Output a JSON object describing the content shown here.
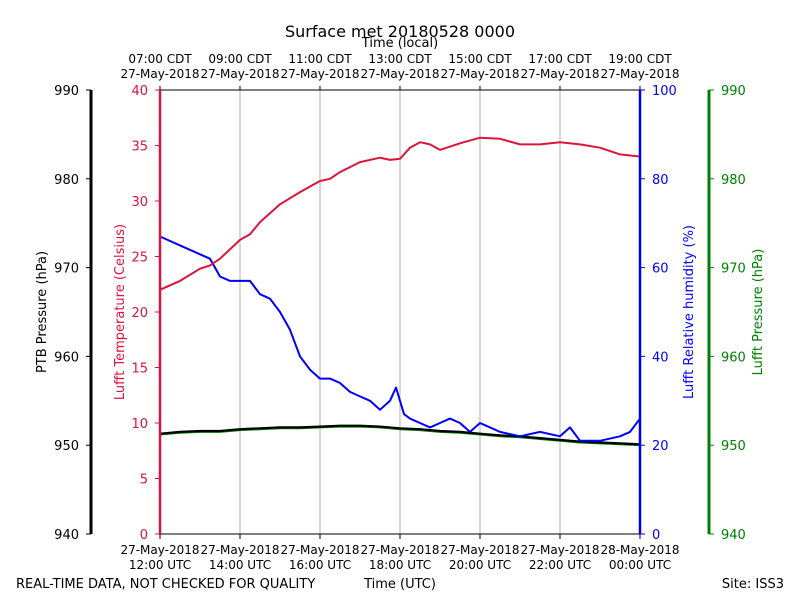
{
  "chart_data": {
    "type": "line",
    "title": "Surface met 20180528 0000",
    "top_axis_label": "Time (local)",
    "top_ticks": [
      {
        "time": "07:00 CDT",
        "date": "27-May-2018"
      },
      {
        "time": "09:00 CDT",
        "date": "27-May-2018"
      },
      {
        "time": "11:00 CDT",
        "date": "27-May-2018"
      },
      {
        "time": "13:00 CDT",
        "date": "27-May-2018"
      },
      {
        "time": "15:00 CDT",
        "date": "27-May-2018"
      },
      {
        "time": "17:00 CDT",
        "date": "27-May-2018"
      },
      {
        "time": "19:00 CDT",
        "date": "27-May-2018"
      }
    ],
    "bottom_ticks": [
      {
        "date": "27-May-2018",
        "time": "12:00 UTC"
      },
      {
        "date": "27-May-2018",
        "time": "14:00 UTC"
      },
      {
        "date": "27-May-2018",
        "time": "16:00 UTC"
      },
      {
        "date": "27-May-2018",
        "time": "18:00 UTC"
      },
      {
        "date": "27-May-2018",
        "time": "20:00 UTC"
      },
      {
        "date": "27-May-2018",
        "time": "22:00 UTC"
      },
      {
        "date": "28-May-2018",
        "time": "00:00 UTC"
      }
    ],
    "xlabel": "Time (UTC)",
    "xlim_hours_utc": [
      12,
      24
    ],
    "grid": true,
    "axes": {
      "ptb_pressure": {
        "label": "PTB Pressure (hPa)",
        "lim": [
          940,
          990
        ],
        "ticks": [
          940,
          950,
          960,
          970,
          980,
          990
        ],
        "color": "#000000"
      },
      "temperature": {
        "label": "Lufft Temperature (Celsius)",
        "lim": [
          0,
          40
        ],
        "ticks": [
          0,
          5,
          10,
          15,
          20,
          25,
          30,
          35,
          40
        ],
        "color": "#dc143c"
      },
      "humidity": {
        "label": "Lufft Relative humidity (%)",
        "lim": [
          0,
          100
        ],
        "ticks": [
          0,
          20,
          40,
          60,
          80,
          100
        ],
        "color": "#0000ff"
      },
      "lufft_pressure": {
        "label": "Lufft Pressure (hPa)",
        "lim": [
          940,
          990
        ],
        "ticks": [
          940,
          950,
          960,
          970,
          980,
          990
        ],
        "color": "#008000"
      }
    },
    "series": [
      {
        "name": "Lufft Temperature",
        "axis": "temperature",
        "color": "#dc143c",
        "x": [
          12.0,
          12.5,
          13.0,
          13.25,
          13.5,
          14.0,
          14.25,
          14.5,
          15.0,
          15.5,
          16.0,
          16.25,
          16.5,
          17.0,
          17.5,
          17.75,
          18.0,
          18.25,
          18.5,
          18.75,
          19.0,
          19.5,
          20.0,
          20.5,
          21.0,
          21.5,
          22.0,
          22.5,
          23.0,
          23.5,
          24.0
        ],
        "values": [
          22.0,
          22.8,
          23.9,
          24.2,
          24.8,
          26.5,
          27.0,
          28.1,
          29.7,
          30.8,
          31.8,
          32.0,
          32.6,
          33.5,
          33.9,
          33.7,
          33.8,
          34.8,
          35.3,
          35.1,
          34.6,
          35.2,
          35.7,
          35.6,
          35.1,
          35.1,
          35.3,
          35.1,
          34.8,
          34.2,
          34.0
        ]
      },
      {
        "name": "Lufft Relative humidity",
        "axis": "humidity",
        "color": "#0000ff",
        "x": [
          12.0,
          12.5,
          13.0,
          13.25,
          13.5,
          13.75,
          14.0,
          14.25,
          14.5,
          14.75,
          15.0,
          15.25,
          15.5,
          15.75,
          16.0,
          16.25,
          16.5,
          16.75,
          17.0,
          17.25,
          17.5,
          17.75,
          17.9,
          18.0,
          18.1,
          18.25,
          18.5,
          18.75,
          19.0,
          19.25,
          19.5,
          19.75,
          20.0,
          20.25,
          20.5,
          21.0,
          21.5,
          22.0,
          22.25,
          22.5,
          23.0,
          23.5,
          23.75,
          24.0
        ],
        "values": [
          67,
          65,
          63,
          62,
          58,
          57,
          57,
          57,
          54,
          53,
          50,
          46,
          40,
          37,
          35,
          35,
          34,
          32,
          31,
          30,
          28,
          30,
          33,
          30,
          27,
          26,
          25,
          24,
          25,
          26,
          25,
          23,
          25,
          24,
          23,
          22,
          23,
          22,
          24,
          21,
          21,
          22,
          23,
          26
        ]
      },
      {
        "name": "PTB Pressure",
        "axis": "ptb_pressure",
        "color": "#000000",
        "x": [
          12.0,
          12.5,
          13.0,
          13.5,
          14.0,
          14.5,
          15.0,
          15.5,
          16.0,
          16.5,
          17.0,
          17.5,
          18.0,
          18.5,
          19.0,
          19.5,
          20.0,
          20.5,
          21.0,
          21.5,
          22.0,
          22.5,
          23.0,
          23.5,
          24.0
        ],
        "values": [
          951.3,
          951.5,
          951.6,
          951.6,
          951.8,
          951.9,
          952.0,
          952.0,
          952.1,
          952.2,
          952.2,
          952.1,
          951.9,
          951.8,
          951.6,
          951.5,
          951.3,
          951.1,
          951.0,
          950.8,
          950.6,
          950.4,
          950.3,
          950.2,
          950.1
        ]
      },
      {
        "name": "Lufft Pressure",
        "axis": "lufft_pressure",
        "color": "#008000",
        "x": [
          12.0,
          12.5,
          13.0,
          13.5,
          14.0,
          14.5,
          15.0,
          15.5,
          16.0,
          16.5,
          17.0,
          17.5,
          18.0,
          18.5,
          19.0,
          19.5,
          20.0,
          20.5,
          21.0,
          21.5,
          22.0,
          22.5,
          23.0,
          23.5,
          24.0
        ],
        "values": [
          951.2,
          951.4,
          951.5,
          951.5,
          951.7,
          951.8,
          951.9,
          951.9,
          952.0,
          952.1,
          952.1,
          952.0,
          951.8,
          951.7,
          951.5,
          951.4,
          951.2,
          951.0,
          950.9,
          950.7,
          950.5,
          950.3,
          950.2,
          950.1,
          950.0
        ]
      }
    ],
    "footer_left": "REAL-TIME DATA, NOT CHECKED FOR QUALITY",
    "footer_right": "Site: ISS3"
  }
}
